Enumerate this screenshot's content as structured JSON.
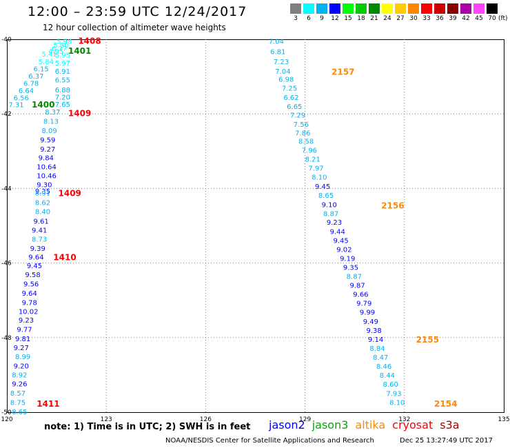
{
  "title": "12:00 – 23:59 UTC 12/24/2017",
  "subtitle": "12 hour collection of altimeter wave heights",
  "colorbar": {
    "unit": "(ft)",
    "bins": [
      {
        "label": "3",
        "color": "#7f7f7f"
      },
      {
        "label": "6",
        "color": "#00ffff"
      },
      {
        "label": "9",
        "color": "#00b2ee"
      },
      {
        "label": "12",
        "color": "#0000ff"
      },
      {
        "label": "15",
        "color": "#00ff00"
      },
      {
        "label": "18",
        "color": "#00cc00"
      },
      {
        "label": "21",
        "color": "#008800"
      },
      {
        "label": "24",
        "color": "#ffff00"
      },
      {
        "label": "27",
        "color": "#ffcc00"
      },
      {
        "label": "30",
        "color": "#ff8800"
      },
      {
        "label": "33",
        "color": "#ff0000"
      },
      {
        "label": "36",
        "color": "#cc0000"
      },
      {
        "label": "39",
        "color": "#880000"
      },
      {
        "label": "42",
        "color": "#aa00aa"
      },
      {
        "label": "45",
        "color": "#ff44ff"
      },
      {
        "label": "70",
        "color": "#000000"
      }
    ]
  },
  "map": {
    "lon_range": [
      120,
      135
    ],
    "lat_range": [
      -50,
      -40
    ],
    "lon_ticks": [
      120,
      123,
      126,
      129,
      132,
      135
    ],
    "lon_tick_labels": [
      "120",
      "123",
      "126",
      "129",
      "132",
      "135"
    ],
    "lat_ticks": [
      -40,
      -42,
      -44,
      -46,
      -48,
      -50
    ],
    "lat_tick_labels": [
      "-40",
      "-42",
      "-44",
      "-46",
      "-48",
      "-50"
    ],
    "gridlines": "dotted",
    "tracks": [
      {
        "observations": [
          {
            "lon": 121.5,
            "lat": -40.05,
            "value": "5.98",
            "color": "#00ffff"
          },
          {
            "lon": 121.4,
            "lat": -40.15,
            "value": "5.90",
            "color": "#00ffff"
          },
          {
            "lon": 121.35,
            "lat": -40.24,
            "value": "6.37",
            "color": "#00ffff"
          },
          {
            "lon": 121.25,
            "lat": -40.31,
            "value": "4.95",
            "color": "#00ffff"
          },
          {
            "lon": 121.05,
            "lat": -40.39,
            "value": "5.41",
            "color": "#00ffff"
          },
          {
            "lon": 121.45,
            "lat": -40.42,
            "value": "5.95",
            "color": "#00ffff"
          },
          {
            "lon": 120.95,
            "lat": -40.59,
            "value": "5.84",
            "color": "#00ffff"
          },
          {
            "lon": 121.45,
            "lat": -40.63,
            "value": "5.97",
            "color": "#00ffff"
          },
          {
            "lon": 120.8,
            "lat": -40.79,
            "value": "6.15",
            "color": "#00b2ee"
          },
          {
            "lon": 121.45,
            "lat": -40.85,
            "value": "6.91",
            "color": "#00b2ee"
          },
          {
            "lon": 120.65,
            "lat": -40.98,
            "value": "6.37",
            "color": "#00b2ee"
          },
          {
            "lon": 120.5,
            "lat": -41.17,
            "value": "6.78",
            "color": "#00b2ee"
          },
          {
            "lon": 121.45,
            "lat": -41.08,
            "value": "6.55",
            "color": "#00b2ee"
          },
          {
            "lon": 120.35,
            "lat": -41.37,
            "value": "6.64",
            "color": "#00b2ee"
          },
          {
            "lon": 121.45,
            "lat": -41.35,
            "value": "6.88",
            "color": "#00b2ee"
          },
          {
            "lon": 120.2,
            "lat": -41.56,
            "value": "6.56",
            "color": "#00b2ee"
          },
          {
            "lon": 121.45,
            "lat": -41.54,
            "value": "7.20",
            "color": "#00b2ee"
          },
          {
            "lon": 120.05,
            "lat": -41.75,
            "value": "7.31",
            "color": "#00b2ee"
          },
          {
            "lon": 121.45,
            "lat": -41.74,
            "value": "7.65",
            "color": "#00b2ee"
          },
          {
            "lon": 121.15,
            "lat": -41.94,
            "value": "8.37",
            "color": "#00b2ee"
          },
          {
            "lon": 121.1,
            "lat": -42.19,
            "value": "8.13",
            "color": "#00b2ee"
          },
          {
            "lon": 121.05,
            "lat": -42.44,
            "value": "8.09",
            "color": "#00b2ee"
          },
          {
            "lon": 121.0,
            "lat": -42.69,
            "value": "9.59",
            "color": "#0000ff"
          },
          {
            "lon": 121.0,
            "lat": -42.94,
            "value": "9.27",
            "color": "#0000ff"
          },
          {
            "lon": 120.95,
            "lat": -43.17,
            "value": "9.84",
            "color": "#0000ff"
          },
          {
            "lon": 120.9,
            "lat": -43.41,
            "value": "10.64",
            "color": "#0000ff"
          },
          {
            "lon": 120.9,
            "lat": -43.65,
            "value": "10.46",
            "color": "#0000ff"
          },
          {
            "lon": 120.9,
            "lat": -43.89,
            "value": "9.30",
            "color": "#0000ff"
          },
          {
            "lon": 120.85,
            "lat": -44.07,
            "value": "9.35",
            "color": "#0000ff"
          },
          {
            "lon": 120.85,
            "lat": -44.11,
            "value": "8.91",
            "color": "#00b2ee"
          },
          {
            "lon": 120.85,
            "lat": -44.37,
            "value": "8.62",
            "color": "#00b2ee"
          },
          {
            "lon": 120.85,
            "lat": -44.61,
            "value": "8.40",
            "color": "#00b2ee"
          },
          {
            "lon": 120.8,
            "lat": -44.87,
            "value": "9.61",
            "color": "#0000ff"
          },
          {
            "lon": 120.75,
            "lat": -45.11,
            "value": "9.41",
            "color": "#0000ff"
          },
          {
            "lon": 120.75,
            "lat": -45.35,
            "value": "8.73",
            "color": "#00b2ee"
          },
          {
            "lon": 120.7,
            "lat": -45.6,
            "value": "9.39",
            "color": "#0000ff"
          },
          {
            "lon": 120.65,
            "lat": -45.83,
            "value": "9.64",
            "color": "#0000ff"
          },
          {
            "lon": 120.6,
            "lat": -46.06,
            "value": "9.45",
            "color": "#0000ff"
          },
          {
            "lon": 120.55,
            "lat": -46.3,
            "value": "9.58",
            "color": "#0000ff"
          },
          {
            "lon": 120.5,
            "lat": -46.55,
            "value": "9.56",
            "color": "#0000ff"
          },
          {
            "lon": 120.45,
            "lat": -46.8,
            "value": "9.64",
            "color": "#0000ff"
          },
          {
            "lon": 120.45,
            "lat": -47.05,
            "value": "9.78",
            "color": "#0000ff"
          },
          {
            "lon": 120.35,
            "lat": -47.29,
            "value": "10.02",
            "color": "#0000ff"
          },
          {
            "lon": 120.35,
            "lat": -47.52,
            "value": "9.23",
            "color": "#0000ff"
          },
          {
            "lon": 120.3,
            "lat": -47.77,
            "value": "9.77",
            "color": "#0000ff"
          },
          {
            "lon": 120.25,
            "lat": -48.02,
            "value": "9.81",
            "color": "#0000ff"
          },
          {
            "lon": 120.2,
            "lat": -48.26,
            "value": "9.27",
            "color": "#0000ff"
          },
          {
            "lon": 120.25,
            "lat": -48.5,
            "value": "8.99",
            "color": "#00b2ee"
          },
          {
            "lon": 120.2,
            "lat": -48.75,
            "value": "9.20",
            "color": "#0000ff"
          },
          {
            "lon": 120.15,
            "lat": -48.99,
            "value": "8.92",
            "color": "#00b2ee"
          },
          {
            "lon": 120.15,
            "lat": -49.23,
            "value": "9.26",
            "color": "#0000ff"
          },
          {
            "lon": 120.1,
            "lat": -49.48,
            "value": "8.57",
            "color": "#00b2ee"
          },
          {
            "lon": 120.1,
            "lat": -49.73,
            "value": "8.75",
            "color": "#00b2ee"
          },
          {
            "lon": 120.15,
            "lat": -49.98,
            "value": "8.65",
            "color": "#00b2ee"
          }
        ],
        "times": [
          {
            "lon": 122.15,
            "lat": -40.03,
            "value": "1408",
            "color": "#ff0000"
          },
          {
            "lon": 121.85,
            "lat": -40.3,
            "value": "1401",
            "color": "#008800"
          },
          {
            "lon": 120.75,
            "lat": -41.74,
            "value": "1400",
            "color": "#008800"
          },
          {
            "lon": 121.85,
            "lat": -41.97,
            "value": "1409",
            "color": "#ff0000"
          },
          {
            "lon": 121.55,
            "lat": -44.11,
            "value": "1409",
            "color": "#ff0000"
          },
          {
            "lon": 121.4,
            "lat": -45.83,
            "value": "1410",
            "color": "#ff0000"
          },
          {
            "lon": 120.9,
            "lat": -49.76,
            "value": "1411",
            "color": "#ff0000"
          }
        ]
      },
      {
        "observations": [
          {
            "lon": 127.9,
            "lat": -40.05,
            "value": "7.04",
            "color": "#00b2ee"
          },
          {
            "lon": 127.95,
            "lat": -40.32,
            "value": "6.81",
            "color": "#00b2ee"
          },
          {
            "lon": 128.05,
            "lat": -40.59,
            "value": "7.23",
            "color": "#00b2ee"
          },
          {
            "lon": 128.1,
            "lat": -40.85,
            "value": "7.04",
            "color": "#00b2ee"
          },
          {
            "lon": 128.2,
            "lat": -41.06,
            "value": "6.98",
            "color": "#00b2ee"
          },
          {
            "lon": 128.3,
            "lat": -41.3,
            "value": "7.25",
            "color": "#00b2ee"
          },
          {
            "lon": 128.35,
            "lat": -41.55,
            "value": "6.62",
            "color": "#00b2ee"
          },
          {
            "lon": 128.45,
            "lat": -41.79,
            "value": "6.65",
            "color": "#00b2ee"
          },
          {
            "lon": 128.55,
            "lat": -42.02,
            "value": "7.29",
            "color": "#00b2ee"
          },
          {
            "lon": 128.65,
            "lat": -42.27,
            "value": "7.56",
            "color": "#00b2ee"
          },
          {
            "lon": 128.7,
            "lat": -42.5,
            "value": "7.86",
            "color": "#00b2ee"
          },
          {
            "lon": 128.8,
            "lat": -42.73,
            "value": "8.58",
            "color": "#00b2ee"
          },
          {
            "lon": 128.9,
            "lat": -42.97,
            "value": "7.96",
            "color": "#00b2ee"
          },
          {
            "lon": 129.0,
            "lat": -43.21,
            "value": "8.21",
            "color": "#00b2ee"
          },
          {
            "lon": 129.1,
            "lat": -43.45,
            "value": "7.97",
            "color": "#00b2ee"
          },
          {
            "lon": 129.2,
            "lat": -43.69,
            "value": "8.10",
            "color": "#00b2ee"
          },
          {
            "lon": 129.3,
            "lat": -43.94,
            "value": "9.45",
            "color": "#0000ff"
          },
          {
            "lon": 129.4,
            "lat": -44.18,
            "value": "8.65",
            "color": "#00b2ee"
          },
          {
            "lon": 129.5,
            "lat": -44.43,
            "value": "9.10",
            "color": "#0000ff"
          },
          {
            "lon": 129.55,
            "lat": -44.67,
            "value": "8.87",
            "color": "#00b2ee"
          },
          {
            "lon": 129.65,
            "lat": -44.9,
            "value": "9.23",
            "color": "#0000ff"
          },
          {
            "lon": 129.75,
            "lat": -45.15,
            "value": "9.44",
            "color": "#0000ff"
          },
          {
            "lon": 129.85,
            "lat": -45.39,
            "value": "9.45",
            "color": "#0000ff"
          },
          {
            "lon": 129.95,
            "lat": -45.63,
            "value": "9.02",
            "color": "#0000ff"
          },
          {
            "lon": 130.05,
            "lat": -45.87,
            "value": "9.19",
            "color": "#0000ff"
          },
          {
            "lon": 130.15,
            "lat": -46.11,
            "value": "9.35",
            "color": "#0000ff"
          },
          {
            "lon": 130.25,
            "lat": -46.35,
            "value": "8.87",
            "color": "#00b2ee"
          },
          {
            "lon": 130.35,
            "lat": -46.59,
            "value": "9.87",
            "color": "#0000ff"
          },
          {
            "lon": 130.45,
            "lat": -46.83,
            "value": "9.66",
            "color": "#0000ff"
          },
          {
            "lon": 130.55,
            "lat": -47.07,
            "value": "9.79",
            "color": "#0000ff"
          },
          {
            "lon": 130.65,
            "lat": -47.31,
            "value": "9.99",
            "color": "#0000ff"
          },
          {
            "lon": 130.75,
            "lat": -47.56,
            "value": "9.49",
            "color": "#0000ff"
          },
          {
            "lon": 130.85,
            "lat": -47.8,
            "value": "9.38",
            "color": "#0000ff"
          },
          {
            "lon": 130.9,
            "lat": -48.04,
            "value": "9.14",
            "color": "#0000ff"
          },
          {
            "lon": 130.95,
            "lat": -48.28,
            "value": "8.84",
            "color": "#00b2ee"
          },
          {
            "lon": 131.05,
            "lat": -48.52,
            "value": "8.47",
            "color": "#00b2ee"
          },
          {
            "lon": 131.15,
            "lat": -48.76,
            "value": "8.46",
            "color": "#00b2ee"
          },
          {
            "lon": 131.25,
            "lat": -49.0,
            "value": "8.44",
            "color": "#00b2ee"
          },
          {
            "lon": 131.35,
            "lat": -49.24,
            "value": "8.60",
            "color": "#00b2ee"
          },
          {
            "lon": 131.45,
            "lat": -49.49,
            "value": "7.93",
            "color": "#00b2ee"
          },
          {
            "lon": 131.55,
            "lat": -49.73,
            "value": "8.10",
            "color": "#00b2ee"
          }
        ],
        "times": [
          {
            "lon": 129.8,
            "lat": -40.86,
            "value": "2157",
            "color": "#ff8800"
          },
          {
            "lon": 131.3,
            "lat": -44.45,
            "value": "2156",
            "color": "#ff8800"
          },
          {
            "lon": 132.35,
            "lat": -48.04,
            "value": "2155",
            "color": "#ff8800"
          },
          {
            "lon": 132.9,
            "lat": -49.76,
            "value": "2154",
            "color": "#ff8800"
          }
        ]
      }
    ]
  },
  "note": "note:  1) Time is in UTC; 2) SWH is in feet",
  "legend": [
    {
      "label": "jason2",
      "color": "#0000ee"
    },
    {
      "label": "jason3",
      "color": "#00aa00"
    },
    {
      "label": "altika",
      "color": "#ff8800"
    },
    {
      "label": "cryosat",
      "color": "#ff0000"
    },
    {
      "label": "s3a",
      "color": "#aa0000"
    }
  ],
  "credit": "NOAA/NESDIS Center for Satellite Applications and Research",
  "timestamp": "Dec 25 13:27:49 UTC 2017"
}
